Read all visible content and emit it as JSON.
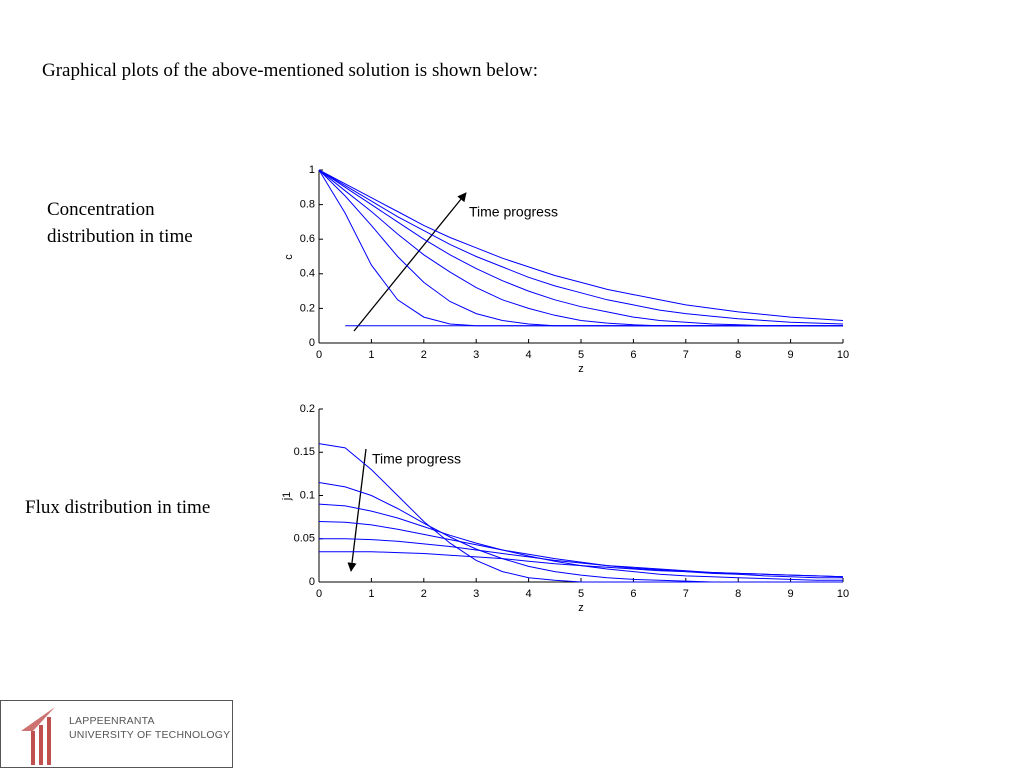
{
  "header": {
    "title": "Graphical plots of the above-mentioned solution is shown below:"
  },
  "labels": {
    "concentration": "Concentration distribution in time",
    "flux": "Flux distribution in time"
  },
  "logo": {
    "line1": "LAPPEENRANTA",
    "line2": "UNIVERSITY OF TECHNOLOGY"
  },
  "chart_data": [
    {
      "type": "line",
      "x_label": "z",
      "y_label": "c",
      "annotation": "Time progress",
      "xlim": [
        0,
        10
      ],
      "xticks": [
        0,
        1,
        2,
        3,
        4,
        5,
        6,
        7,
        8,
        9,
        10
      ],
      "ylim": [
        0,
        1
      ],
      "yticks": [
        0,
        0.2,
        0.4,
        0.6,
        0.8,
        1
      ],
      "x": [
        0,
        0.5,
        1,
        1.5,
        2,
        2.5,
        3,
        3.5,
        4,
        4.5,
        5,
        5.5,
        6,
        6.5,
        7,
        7.5,
        8,
        8.5,
        9,
        9.5,
        10
      ],
      "series": [
        {
          "color": "#0000ff",
          "values": [
            null,
            0.1,
            0.1,
            0.1,
            0.1,
            0.1,
            0.1,
            0.1,
            0.1,
            0.1,
            0.1,
            0.1,
            0.1,
            0.1,
            0.1,
            0.1,
            0.1,
            0.1,
            0.1,
            0.1,
            0.1
          ]
        },
        {
          "color": "#0000ff",
          "values": [
            1,
            0.75,
            0.45,
            0.25,
            0.15,
            0.11,
            0.1,
            0.1,
            0.1,
            0.1,
            0.1,
            0.1,
            0.1,
            0.1,
            0.1,
            0.1,
            0.1,
            0.1,
            0.1,
            0.1,
            0.1
          ]
        },
        {
          "color": "#0000ff",
          "values": [
            1,
            0.85,
            0.68,
            0.5,
            0.35,
            0.24,
            0.17,
            0.13,
            0.11,
            0.1,
            0.1,
            0.1,
            0.1,
            0.1,
            0.1,
            0.1,
            0.1,
            0.1,
            0.1,
            0.1,
            0.1
          ]
        },
        {
          "color": "#0000ff",
          "values": [
            1,
            0.88,
            0.76,
            0.63,
            0.51,
            0.41,
            0.32,
            0.25,
            0.2,
            0.16,
            0.13,
            0.115,
            0.105,
            0.1,
            0.1,
            0.1,
            0.1,
            0.1,
            0.1,
            0.1,
            0.1
          ]
        },
        {
          "color": "#0000ff",
          "values": [
            1,
            0.9,
            0.8,
            0.7,
            0.6,
            0.51,
            0.43,
            0.36,
            0.3,
            0.25,
            0.21,
            0.18,
            0.15,
            0.13,
            0.12,
            0.11,
            0.105,
            0.1,
            0.1,
            0.1,
            0.1
          ]
        },
        {
          "color": "#0000ff",
          "values": [
            1,
            0.91,
            0.82,
            0.73,
            0.65,
            0.57,
            0.5,
            0.44,
            0.38,
            0.33,
            0.29,
            0.25,
            0.22,
            0.19,
            0.17,
            0.155,
            0.14,
            0.13,
            0.12,
            0.115,
            0.11
          ]
        },
        {
          "color": "#0000ff",
          "values": [
            1,
            0.92,
            0.84,
            0.76,
            0.68,
            0.61,
            0.55,
            0.49,
            0.44,
            0.39,
            0.35,
            0.31,
            0.28,
            0.25,
            0.22,
            0.2,
            0.18,
            0.165,
            0.15,
            0.14,
            0.13
          ]
        }
      ]
    },
    {
      "type": "line",
      "x_label": "z",
      "y_label": "j1",
      "annotation": "Time progress",
      "xlim": [
        0,
        10
      ],
      "xticks": [
        0,
        1,
        2,
        3,
        4,
        5,
        6,
        7,
        8,
        9,
        10
      ],
      "ylim": [
        0,
        0.2
      ],
      "yticks": [
        0,
        0.05,
        0.1,
        0.15,
        0.2
      ],
      "x": [
        0,
        0.5,
        1,
        1.5,
        2,
        2.5,
        3,
        3.5,
        4,
        4.5,
        5,
        5.5,
        6,
        6.5,
        7,
        7.5,
        8,
        8.5,
        9,
        9.5,
        10
      ],
      "series": [
        {
          "color": "#0000ff",
          "values": [
            0.16,
            0.155,
            0.13,
            0.1,
            0.07,
            0.045,
            0.025,
            0.012,
            0.005,
            0.002,
            0,
            0,
            0,
            0,
            0,
            0,
            0,
            0,
            0,
            0,
            0
          ]
        },
        {
          "color": "#0000ff",
          "values": [
            0.115,
            0.11,
            0.1,
            0.085,
            0.068,
            0.052,
            0.038,
            0.027,
            0.018,
            0.012,
            0.008,
            0.005,
            0.003,
            0.002,
            0.001,
            0,
            0,
            0,
            0,
            0,
            0
          ]
        },
        {
          "color": "#0000ff",
          "values": [
            0.09,
            0.088,
            0.082,
            0.074,
            0.064,
            0.054,
            0.045,
            0.037,
            0.03,
            0.024,
            0.019,
            0.015,
            0.012,
            0.009,
            0.007,
            0.006,
            0.005,
            0.004,
            0.003,
            0.002,
            0.002
          ]
        },
        {
          "color": "#0000ff",
          "values": [
            0.07,
            0.069,
            0.066,
            0.061,
            0.055,
            0.049,
            0.043,
            0.037,
            0.032,
            0.027,
            0.023,
            0.019,
            0.016,
            0.014,
            0.012,
            0.01,
            0.009,
            0.007,
            0.006,
            0.005,
            0.005
          ]
        },
        {
          "color": "#0000ff",
          "values": [
            0.05,
            0.05,
            0.049,
            0.047,
            0.044,
            0.041,
            0.037,
            0.033,
            0.029,
            0.025,
            0.022,
            0.019,
            0.017,
            0.015,
            0.013,
            0.011,
            0.01,
            0.009,
            0.008,
            0.007,
            0.006
          ]
        },
        {
          "color": "#0000ff",
          "values": [
            0.035,
            0.035,
            0.035,
            0.034,
            0.033,
            0.031,
            0.029,
            0.027,
            0.024,
            0.021,
            0.019,
            0.017,
            0.015,
            0.013,
            0.012,
            0.011,
            0.01,
            0.009,
            0.008,
            0.007,
            0.006
          ]
        }
      ]
    }
  ]
}
